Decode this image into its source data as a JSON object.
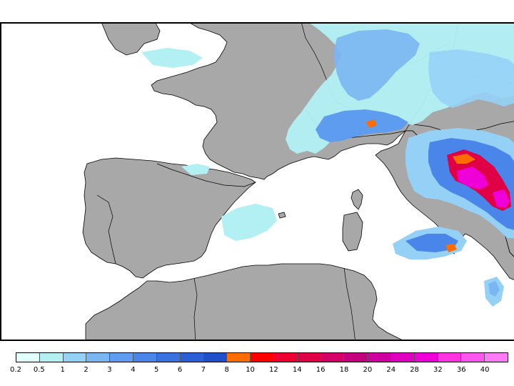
{
  "legend": {
    "colors": [
      "#e0fffd",
      "#b2f0f4",
      "#95d1f7",
      "#7ab6f2",
      "#5d9cee",
      "#4a86e9",
      "#3a71e0",
      "#2c5fd6",
      "#1f4fc9",
      "#ff6d00",
      "#ff0000",
      "#ef0033",
      "#e00045",
      "#d40066",
      "#c4007e",
      "#cf00a0",
      "#e000c0",
      "#f000d8",
      "#ff33e0",
      "#ff55ef",
      "#ff7af5"
    ],
    "ticks": [
      "0.2",
      "0.5",
      "1",
      "2",
      "3",
      "4",
      "5",
      "6",
      "7",
      "8",
      "10",
      "12",
      "14",
      "16",
      "18",
      "20",
      "24",
      "28",
      "32",
      "36",
      "40"
    ]
  },
  "map": {
    "land_color": "#a8a8a8",
    "sea_color": "#ffffff",
    "border_color": "#000000"
  }
}
